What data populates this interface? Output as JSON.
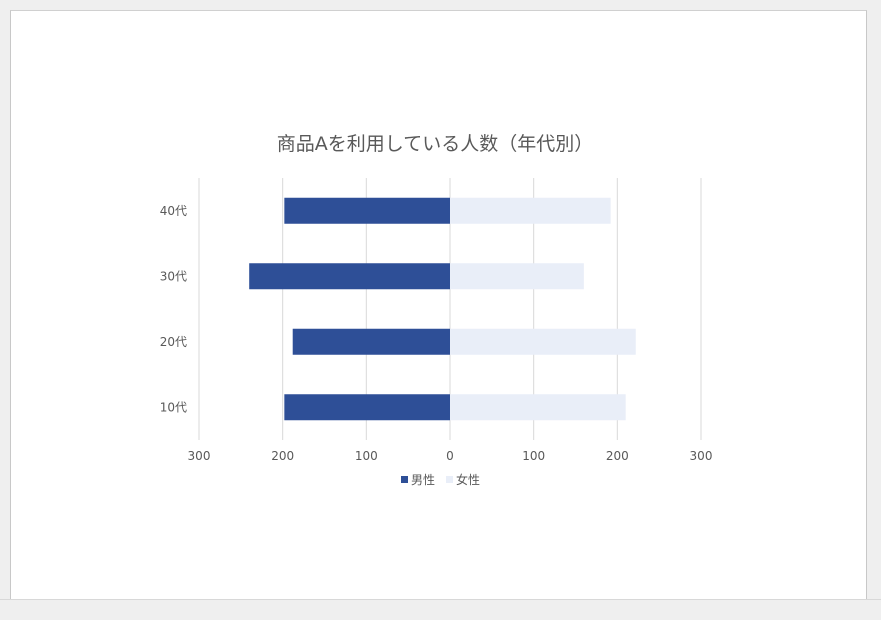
{
  "chart_data": {
    "type": "bar",
    "orientation": "horizontal",
    "title": "商品Aを利用している人数（年代別）",
    "categories": [
      "40代",
      "30代",
      "20代",
      "10代"
    ],
    "series": [
      {
        "name": "男性",
        "values": [
          -198,
          -240,
          -188,
          -198
        ],
        "color": "#2e4f97"
      },
      {
        "name": "女性",
        "values": [
          192,
          160,
          222,
          210
        ],
        "color": "#e9eef8"
      }
    ],
    "xlim": [
      -300,
      300
    ],
    "xticks": [
      -300,
      -200,
      -100,
      0,
      100,
      200,
      300
    ],
    "xtick_labels": [
      "300",
      "200",
      "100",
      "0",
      "100",
      "200",
      "300"
    ],
    "xlabel": "",
    "ylabel": "",
    "grid": "vertical",
    "legend_position": "bottom"
  },
  "colors": {
    "title": "#595959",
    "tick_label": "#595959",
    "gridline": "#d9d9d9"
  }
}
